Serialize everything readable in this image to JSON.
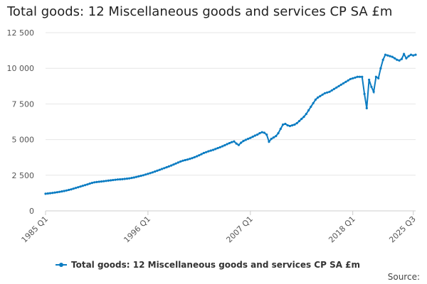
{
  "title": "Total goods: 12 Miscellaneous goods and services CP SA £m",
  "source_label": "Source:",
  "colors": {
    "series": "#0b7cc2",
    "grid": "#e6e6e6",
    "axis": "#cccccc"
  },
  "chart_data": {
    "type": "line",
    "title": "Total goods: 12 Miscellaneous goods and services CP SA £m",
    "xlabel": "",
    "ylabel": "",
    "ylim": [
      0,
      12500
    ],
    "y_ticks": [
      0,
      2500,
      5000,
      7500,
      10000,
      12500
    ],
    "y_tick_labels": [
      "0",
      "2 500",
      "5 000",
      "7 500",
      "10 000",
      "12 500"
    ],
    "x_tick_labels": [
      "1985 Q1",
      "1996 Q1",
      "2007 Q1",
      "2018 Q1",
      "2025 Q3"
    ],
    "x_tick_index": [
      0,
      44,
      88,
      132,
      158
    ],
    "legend_position": "bottom",
    "series": [
      {
        "name": "Total goods: 12 Miscellaneous goods and services CP SA £m",
        "x_start": "1985 Q1",
        "frequency": "quarterly",
        "values": [
          1200,
          1220,
          1240,
          1260,
          1285,
          1310,
          1335,
          1365,
          1395,
          1430,
          1470,
          1510,
          1560,
          1610,
          1660,
          1710,
          1760,
          1810,
          1860,
          1910,
          1960,
          2000,
          2020,
          2040,
          2060,
          2080,
          2100,
          2120,
          2140,
          2160,
          2180,
          2200,
          2210,
          2220,
          2240,
          2260,
          2280,
          2310,
          2340,
          2380,
          2420,
          2460,
          2500,
          2550,
          2600,
          2650,
          2700,
          2760,
          2820,
          2880,
          2940,
          3000,
          3060,
          3120,
          3180,
          3250,
          3320,
          3390,
          3460,
          3520,
          3560,
          3600,
          3650,
          3700,
          3760,
          3830,
          3900,
          3980,
          4060,
          4120,
          4180,
          4230,
          4280,
          4340,
          4400,
          4460,
          4530,
          4600,
          4680,
          4750,
          4820,
          4870,
          4720,
          4620,
          4780,
          4900,
          4980,
          5050,
          5120,
          5200,
          5280,
          5350,
          5450,
          5520,
          5480,
          5350,
          4850,
          5050,
          5150,
          5250,
          5450,
          5750,
          6050,
          6100,
          6000,
          5950,
          6000,
          6050,
          6150,
          6300,
          6450,
          6600,
          6800,
          7050,
          7300,
          7550,
          7800,
          7950,
          8050,
          8150,
          8250,
          8300,
          8350,
          8450,
          8550,
          8650,
          8750,
          8850,
          8950,
          9050,
          9150,
          9250,
          9300,
          9350,
          9400,
          9400,
          9400,
          8200,
          7200,
          9200,
          8700,
          8350,
          9400,
          9300,
          10000,
          10600,
          10950,
          10900,
          10850,
          10800,
          10700,
          10600,
          10550,
          10650,
          11000,
          10700,
          10850,
          10950,
          10900,
          10950
        ]
      }
    ]
  }
}
